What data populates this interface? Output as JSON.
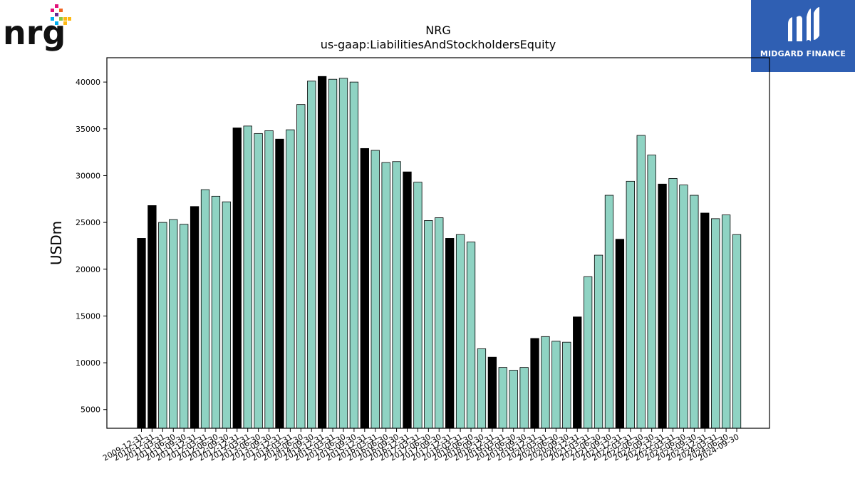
{
  "logos": {
    "left_brand": "nrg",
    "right_brand": "MIDGARD FINANCE"
  },
  "colors": {
    "bar_default": "#8fd3c3",
    "bar_highlight": "#000000",
    "axis": "#000000",
    "logo_bg": "#2f5fb3"
  },
  "chart_data": {
    "type": "bar",
    "title": "NRG",
    "subtitle": "us-gaap:LiabilitiesAndStockholdersEquity",
    "ylabel": "USDm",
    "xlabel": "",
    "ylim": [
      3000,
      42600
    ],
    "yticks": [
      5000,
      10000,
      15000,
      20000,
      25000,
      30000,
      35000,
      40000
    ],
    "highlight_rule": "year-end (-12-31) values shown in black",
    "categories": [
      "2009-12-31",
      "2010-12-31",
      "2011-03-31",
      "2011-06-30",
      "2011-09-30",
      "2011-12-31",
      "2012-03-31",
      "2012-06-30",
      "2012-09-30",
      "2012-12-31",
      "2013-03-31",
      "2013-06-30",
      "2013-09-30",
      "2013-12-31",
      "2014-03-31",
      "2014-06-30",
      "2014-09-30",
      "2014-12-31",
      "2015-03-31",
      "2015-06-30",
      "2015-09-30",
      "2015-12-31",
      "2016-03-31",
      "2016-06-30",
      "2016-09-30",
      "2016-12-31",
      "2017-03-31",
      "2017-06-30",
      "2017-09-30",
      "2017-12-31",
      "2018-03-31",
      "2018-06-30",
      "2018-09-30",
      "2018-12-31",
      "2019-03-31",
      "2019-06-30",
      "2019-09-30",
      "2019-12-31",
      "2020-03-31",
      "2020-06-30",
      "2020-09-30",
      "2020-12-31",
      "2021-03-31",
      "2021-06-30",
      "2021-09-30",
      "2021-12-31",
      "2022-03-31",
      "2022-06-30",
      "2022-09-30",
      "2022-12-31",
      "2023-03-31",
      "2023-06-30",
      "2023-09-30",
      "2023-12-31",
      "2024-03-31",
      "2024-06-30",
      "2024-09-30"
    ],
    "values": [
      23300,
      26800,
      25000,
      25300,
      24800,
      26700,
      28500,
      27800,
      27200,
      35100,
      35300,
      34500,
      34800,
      33900,
      34900,
      37600,
      40100,
      40600,
      40300,
      40400,
      40000,
      32900,
      32700,
      31400,
      31500,
      30400,
      29300,
      25200,
      25500,
      23300,
      23700,
      22900,
      11500,
      10600,
      9500,
      9200,
      9500,
      12600,
      12800,
      12300,
      12200,
      14900,
      19200,
      21500,
      27900,
      23200,
      29400,
      34300,
      32200,
      29100,
      29700,
      29000,
      27900,
      26000,
      25400,
      25800,
      23700
    ],
    "highlight": [
      true,
      true,
      false,
      false,
      false,
      true,
      false,
      false,
      false,
      true,
      false,
      false,
      false,
      true,
      false,
      false,
      false,
      true,
      false,
      false,
      false,
      true,
      false,
      false,
      false,
      true,
      false,
      false,
      false,
      true,
      false,
      false,
      false,
      true,
      false,
      false,
      false,
      true,
      false,
      false,
      false,
      true,
      false,
      false,
      false,
      true,
      false,
      false,
      false,
      true,
      false,
      false,
      false,
      true,
      false,
      false,
      false
    ],
    "grid": false,
    "legend": "none"
  }
}
